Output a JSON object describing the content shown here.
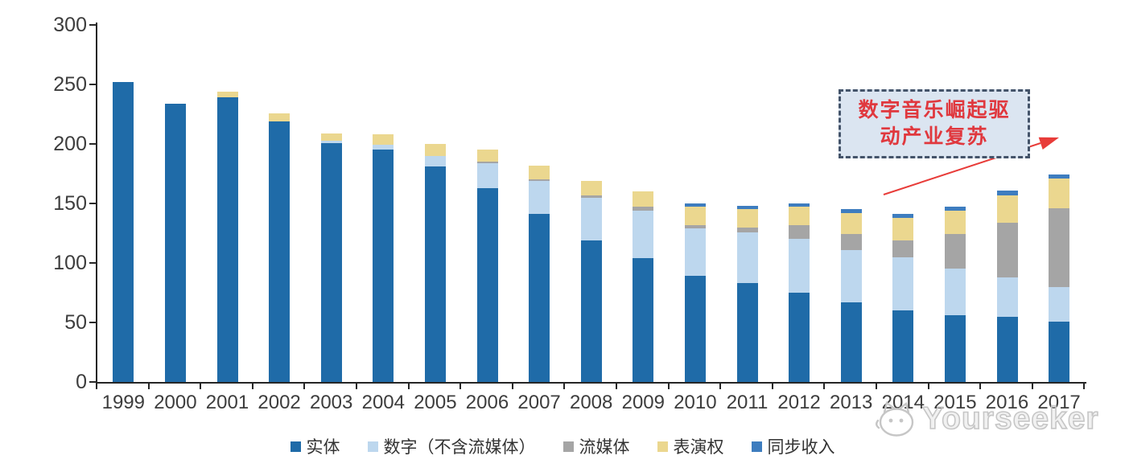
{
  "chart_data": {
    "type": "bar",
    "stacked": true,
    "title": "",
    "xlabel": "",
    "ylabel": "",
    "ylim": [
      0,
      300
    ],
    "y_ticks": [
      0,
      50,
      100,
      150,
      200,
      250,
      300
    ],
    "grid": false,
    "legend_position": "bottom",
    "categories": [
      "1999",
      "2000",
      "2001",
      "2002",
      "2003",
      "2004",
      "2005",
      "2006",
      "2007",
      "2008",
      "2009",
      "2010",
      "2011",
      "2012",
      "2013",
      "2014",
      "2015",
      "2016",
      "2017"
    ],
    "series": [
      {
        "name": "实体",
        "color": "#1F6BA8",
        "values": [
          252,
          234,
          239,
          219,
          201,
          195,
          181,
          163,
          141,
          119,
          104,
          89,
          83,
          75,
          67,
          60,
          56,
          55,
          51
        ]
      },
      {
        "name": "数字（不含流媒体）",
        "color": "#BDD7EE",
        "values": [
          0,
          0,
          0,
          0,
          2,
          4,
          9,
          21,
          28,
          36,
          40,
          40,
          43,
          45,
          44,
          45,
          39,
          33,
          29
        ]
      },
      {
        "name": "流媒体",
        "color": "#A5A5A5",
        "values": [
          0,
          0,
          0,
          0,
          0,
          0,
          0,
          1,
          1,
          2,
          3,
          3,
          4,
          12,
          13,
          14,
          29,
          46,
          66
        ]
      },
      {
        "name": "表演权",
        "color": "#EBD78F",
        "values": [
          0,
          0,
          5,
          7,
          6,
          9,
          10,
          10,
          12,
          12,
          13,
          15,
          15,
          15,
          18,
          19,
          20,
          23,
          25
        ]
      },
      {
        "name": "同步收入",
        "color": "#3E7DBF",
        "values": [
          0,
          0,
          0,
          0,
          0,
          0,
          0,
          0,
          0,
          0,
          0,
          3,
          3,
          3,
          3,
          3,
          3,
          4,
          3
        ]
      }
    ]
  },
  "annotation": {
    "lines": [
      "数字音乐崛起驱",
      "动产业复苏"
    ],
    "text_color": "#E0383E",
    "box_fill": "#DBE5F1",
    "box_border": "#44546A",
    "arrow_color": "#E83C39"
  },
  "axis": {
    "line_color": "#262626",
    "label_color": "#3d3d3d"
  },
  "watermark": {
    "text": "Yourseeker",
    "logo": "cat-face-icon",
    "color": "#c6c6c6"
  }
}
